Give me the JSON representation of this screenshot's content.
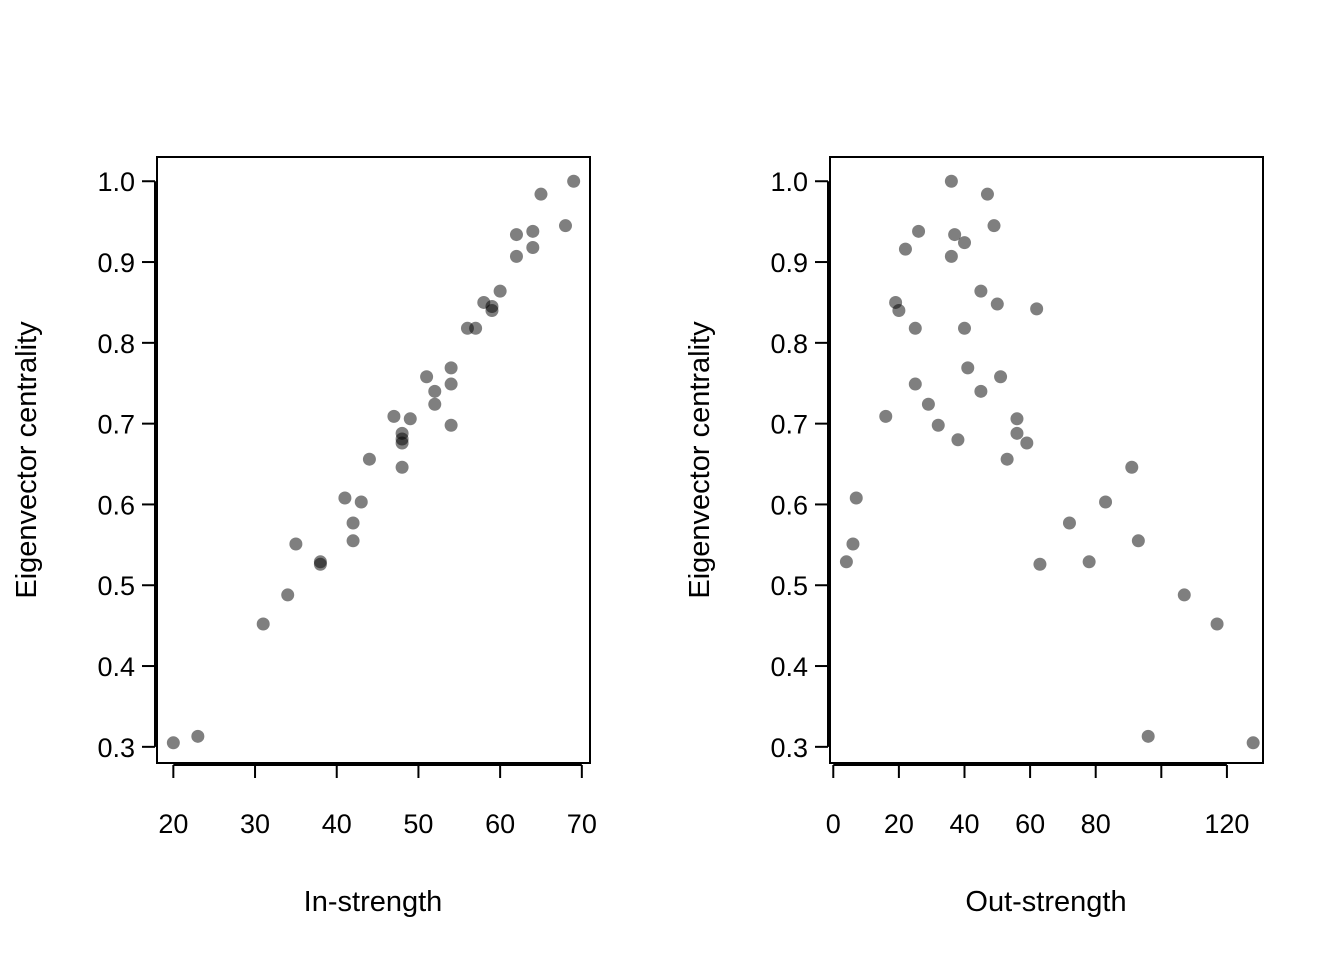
{
  "chart_data": [
    {
      "type": "scatter",
      "title": "",
      "xlabel": "In-strength",
      "ylabel": "Eigenvector centrality",
      "xlim": [
        18,
        71
      ],
      "ylim": [
        0.28,
        1.03
      ],
      "xticks": [
        20,
        30,
        40,
        50,
        60,
        70
      ],
      "xtick_labels": [
        "20",
        "30",
        "40",
        "50",
        "60",
        "70"
      ],
      "yticks": [
        0.3,
        0.4,
        0.5,
        0.6,
        0.7,
        0.8,
        0.9,
        1.0
      ],
      "ytick_labels": [
        "0.3",
        "0.4",
        "0.5",
        "0.6",
        "0.7",
        "0.8",
        "0.9",
        "1.0"
      ],
      "grid": false,
      "point_color": "#000000",
      "point_opacity": 0.5,
      "series": [
        {
          "name": "nodes",
          "x": [
            20,
            23,
            31,
            34,
            35,
            38,
            38,
            41,
            42,
            42,
            43,
            44,
            47,
            48,
            48,
            48,
            48,
            49,
            51,
            52,
            52,
            54,
            54,
            54,
            56,
            57,
            58,
            59,
            59,
            60,
            62,
            62,
            64,
            64,
            65,
            68,
            69
          ],
          "y": [
            0.305,
            0.313,
            0.452,
            0.488,
            0.551,
            0.526,
            0.529,
            0.608,
            0.555,
            0.577,
            0.603,
            0.656,
            0.709,
            0.646,
            0.676,
            0.681,
            0.688,
            0.706,
            0.758,
            0.724,
            0.74,
            0.698,
            0.749,
            0.769,
            0.818,
            0.818,
            0.85,
            0.84,
            0.845,
            0.864,
            0.907,
            0.934,
            0.918,
            0.938,
            0.984,
            0.945,
            1.0
          ]
        }
      ]
    },
    {
      "type": "scatter",
      "title": "",
      "xlabel": "Out-strength",
      "ylabel": "Eigenvector centrality",
      "xlim": [
        -1,
        131
      ],
      "ylim": [
        0.28,
        1.03
      ],
      "xticks": [
        0,
        20,
        40,
        60,
        80,
        100,
        120
      ],
      "xtick_labels": [
        "0",
        "20",
        "40",
        "60",
        "80",
        "",
        "120"
      ],
      "yticks": [
        0.3,
        0.4,
        0.5,
        0.6,
        0.7,
        0.8,
        0.9,
        1.0
      ],
      "ytick_labels": [
        "0.3",
        "0.4",
        "0.5",
        "0.6",
        "0.7",
        "0.8",
        "0.9",
        "1.0"
      ],
      "grid": false,
      "point_color": "#000000",
      "point_opacity": 0.5,
      "series": [
        {
          "name": "nodes",
          "x": [
            4,
            6,
            7,
            16,
            19,
            20,
            22,
            25,
            25,
            26,
            29,
            32,
            36,
            36,
            37,
            38,
            40,
            40,
            41,
            45,
            45,
            47,
            49,
            50,
            51,
            53,
            56,
            56,
            59,
            62,
            63,
            72,
            78,
            83,
            91,
            93,
            96,
            107,
            117,
            128
          ],
          "y": [
            0.529,
            0.551,
            0.608,
            0.709,
            0.85,
            0.84,
            0.916,
            0.818,
            0.749,
            0.938,
            0.724,
            0.698,
            0.907,
            1.0,
            0.934,
            0.68,
            0.818,
            0.924,
            0.769,
            0.864,
            0.74,
            0.984,
            0.945,
            0.848,
            0.758,
            0.656,
            0.706,
            0.688,
            0.676,
            0.842,
            0.526,
            0.577,
            0.529,
            0.603,
            0.646,
            0.555,
            0.313,
            0.488,
            0.452,
            0.305
          ]
        }
      ]
    }
  ]
}
